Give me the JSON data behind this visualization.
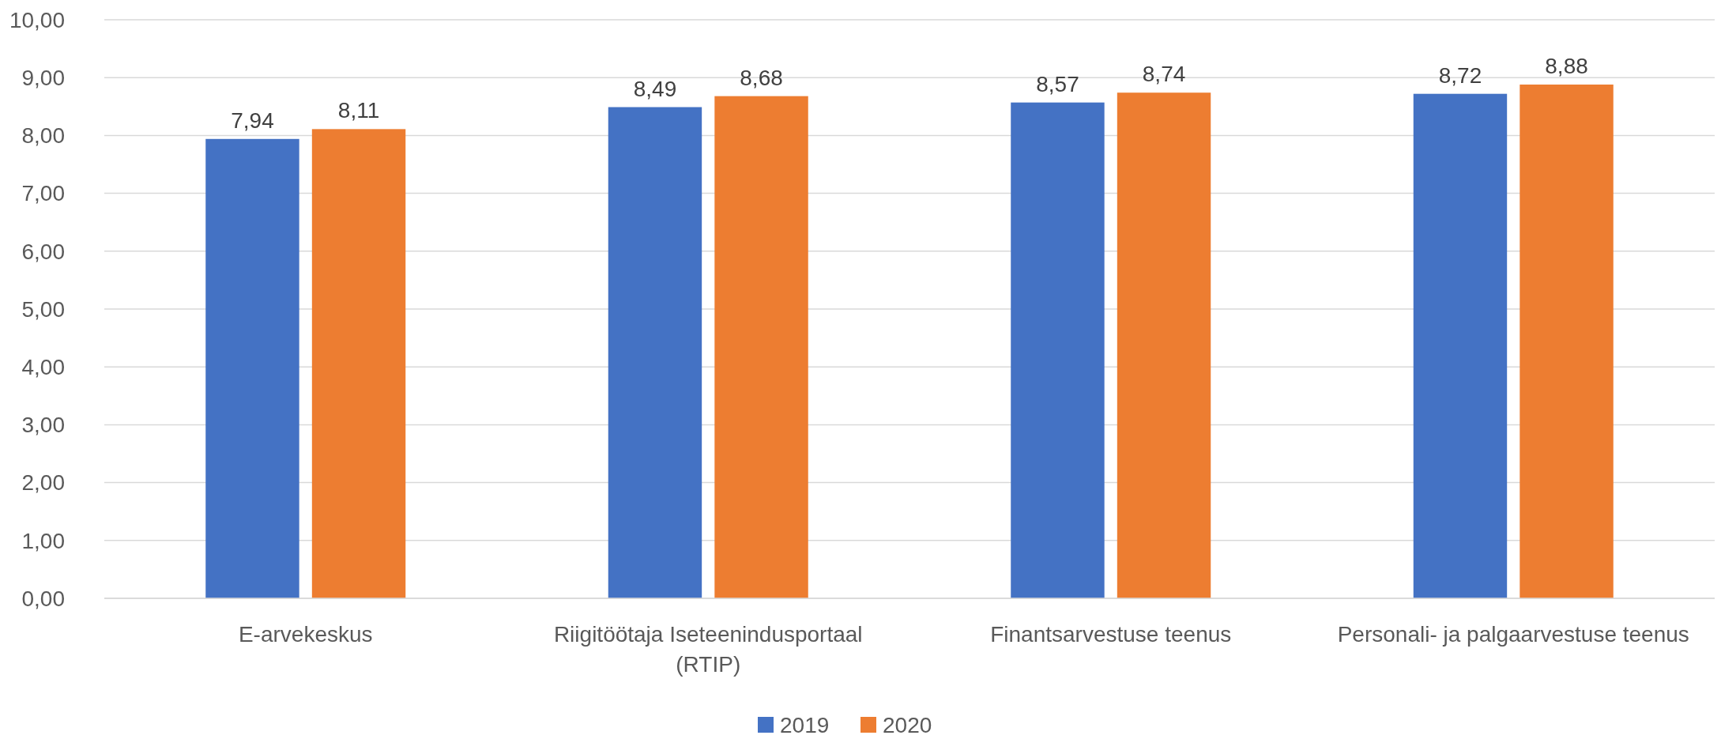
{
  "chart_data": {
    "type": "bar",
    "categories": [
      "E-arvekeskus",
      "Riigitöötaja Iseteenindusportaal (RTIP)",
      "Finantsarvestuse teenus",
      "Personali- ja palgaarvestuse teenus"
    ],
    "series": [
      {
        "name": "2019",
        "color": "#4472c4",
        "values": [
          7.94,
          8.49,
          8.57,
          8.72
        ],
        "value_labels": [
          "7,94",
          "8,49",
          "8,57",
          "8,72"
        ]
      },
      {
        "name": "2020",
        "color": "#ed7d31",
        "values": [
          8.11,
          8.68,
          8.74,
          8.88
        ],
        "value_labels": [
          "8,11",
          "8,68",
          "8,74",
          "8,88"
        ]
      }
    ],
    "ylim": [
      0,
      10
    ],
    "yticks": [
      {
        "value": 0,
        "label": "0,00"
      },
      {
        "value": 1,
        "label": "1,00"
      },
      {
        "value": 2,
        "label": "2,00"
      },
      {
        "value": 3,
        "label": "3,00"
      },
      {
        "value": 4,
        "label": "4,00"
      },
      {
        "value": 5,
        "label": "5,00"
      },
      {
        "value": 6,
        "label": "6,00"
      },
      {
        "value": 7,
        "label": "7,00"
      },
      {
        "value": 8,
        "label": "8,00"
      },
      {
        "value": 9,
        "label": "9,00"
      },
      {
        "value": 10,
        "label": "10,00"
      }
    ],
    "grid": "y",
    "legend": "bottom"
  }
}
